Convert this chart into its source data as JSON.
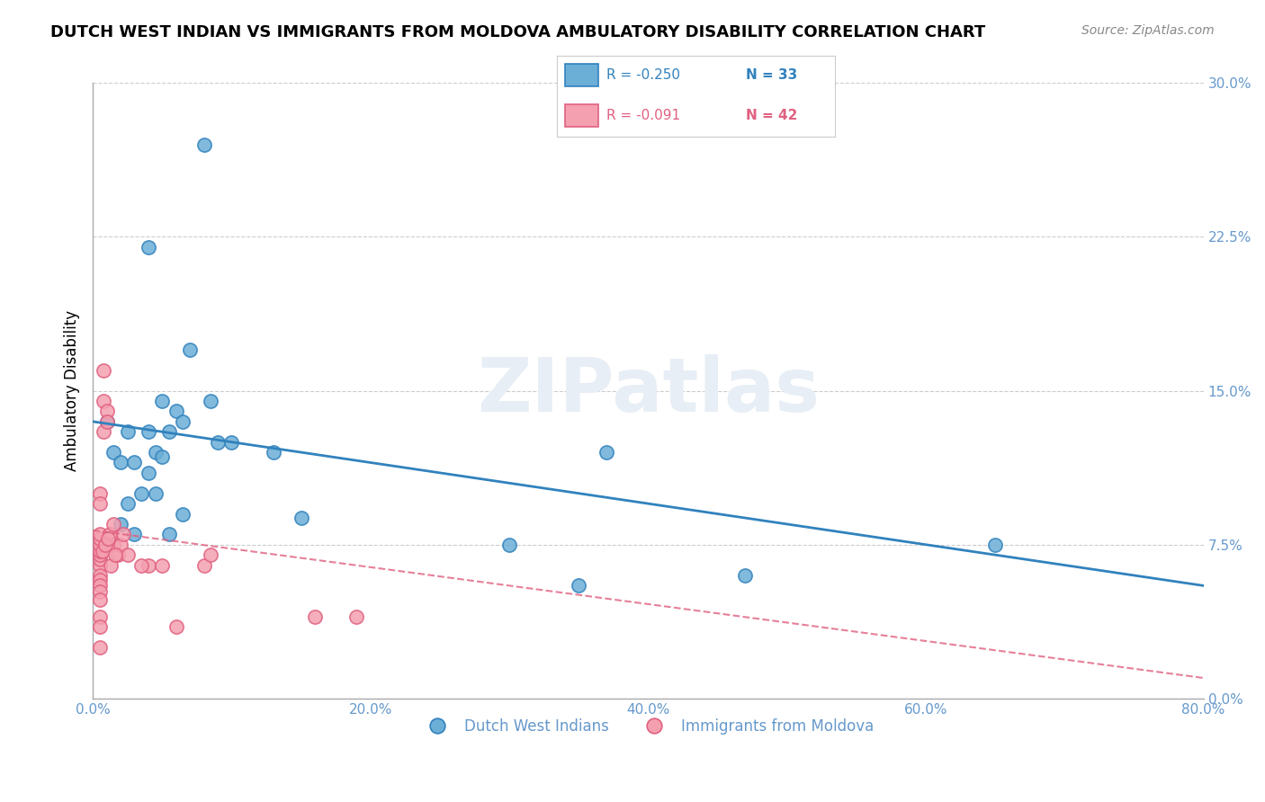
{
  "title": "DUTCH WEST INDIAN VS IMMIGRANTS FROM MOLDOVA AMBULATORY DISABILITY CORRELATION CHART",
  "source": "Source: ZipAtlas.com",
  "ylabel": "Ambulatory Disability",
  "xlim": [
    0.0,
    0.8
  ],
  "ylim": [
    0.0,
    0.3
  ],
  "yticks": [
    0.0,
    0.075,
    0.15,
    0.225,
    0.3
  ],
  "xticks": [
    0.0,
    0.2,
    0.4,
    0.6,
    0.8
  ],
  "blue_color": "#6baed6",
  "pink_color": "#f4a0b0",
  "blue_line_color": "#3182bd",
  "pink_line_color": "#e06080",
  "axis_color": "#6699cc",
  "grid_color": "#cccccc",
  "legend_R1": "R = -0.250",
  "legend_N1": "N = 33",
  "legend_R2": "R = -0.091",
  "legend_N2": "N = 42",
  "legend1_label": "Dutch West Indians",
  "legend2_label": "Immigrants from Moldova",
  "watermark": "ZIPatlas",
  "blue_scatter_x": [
    0.02,
    0.025,
    0.01,
    0.015,
    0.02,
    0.035,
    0.03,
    0.04,
    0.045,
    0.05,
    0.055,
    0.06,
    0.065,
    0.05,
    0.04,
    0.045,
    0.07,
    0.09,
    0.085,
    0.1,
    0.13,
    0.15,
    0.3,
    0.35,
    0.65,
    0.37,
    0.47,
    0.04,
    0.03,
    0.025,
    0.055,
    0.065,
    0.08
  ],
  "blue_scatter_y": [
    0.085,
    0.13,
    0.135,
    0.12,
    0.115,
    0.1,
    0.115,
    0.13,
    0.12,
    0.118,
    0.13,
    0.14,
    0.135,
    0.145,
    0.11,
    0.1,
    0.17,
    0.125,
    0.145,
    0.125,
    0.12,
    0.088,
    0.075,
    0.055,
    0.075,
    0.12,
    0.06,
    0.22,
    0.08,
    0.095,
    0.08,
    0.09,
    0.27
  ],
  "pink_scatter_x": [
    0.005,
    0.005,
    0.005,
    0.005,
    0.005,
    0.005,
    0.005,
    0.005,
    0.005,
    0.005,
    0.005,
    0.005,
    0.005,
    0.005,
    0.005,
    0.008,
    0.008,
    0.008,
    0.01,
    0.01,
    0.012,
    0.015,
    0.015,
    0.018,
    0.02,
    0.022,
    0.025,
    0.04,
    0.05,
    0.06,
    0.08,
    0.085,
    0.16,
    0.19,
    0.005,
    0.005,
    0.007,
    0.009,
    0.011,
    0.013,
    0.016,
    0.035
  ],
  "pink_scatter_y": [
    0.065,
    0.068,
    0.07,
    0.072,
    0.075,
    0.078,
    0.08,
    0.06,
    0.058,
    0.055,
    0.052,
    0.048,
    0.04,
    0.035,
    0.025,
    0.16,
    0.145,
    0.13,
    0.14,
    0.135,
    0.08,
    0.085,
    0.075,
    0.07,
    0.075,
    0.08,
    0.07,
    0.065,
    0.065,
    0.035,
    0.065,
    0.07,
    0.04,
    0.04,
    0.1,
    0.095,
    0.072,
    0.075,
    0.078,
    0.065,
    0.07,
    0.065
  ],
  "blue_trend_x": [
    0.0,
    0.8
  ],
  "blue_trend_y": [
    0.135,
    0.055
  ],
  "pink_trend_x": [
    0.0,
    0.8
  ],
  "pink_trend_y": [
    0.082,
    0.01
  ]
}
